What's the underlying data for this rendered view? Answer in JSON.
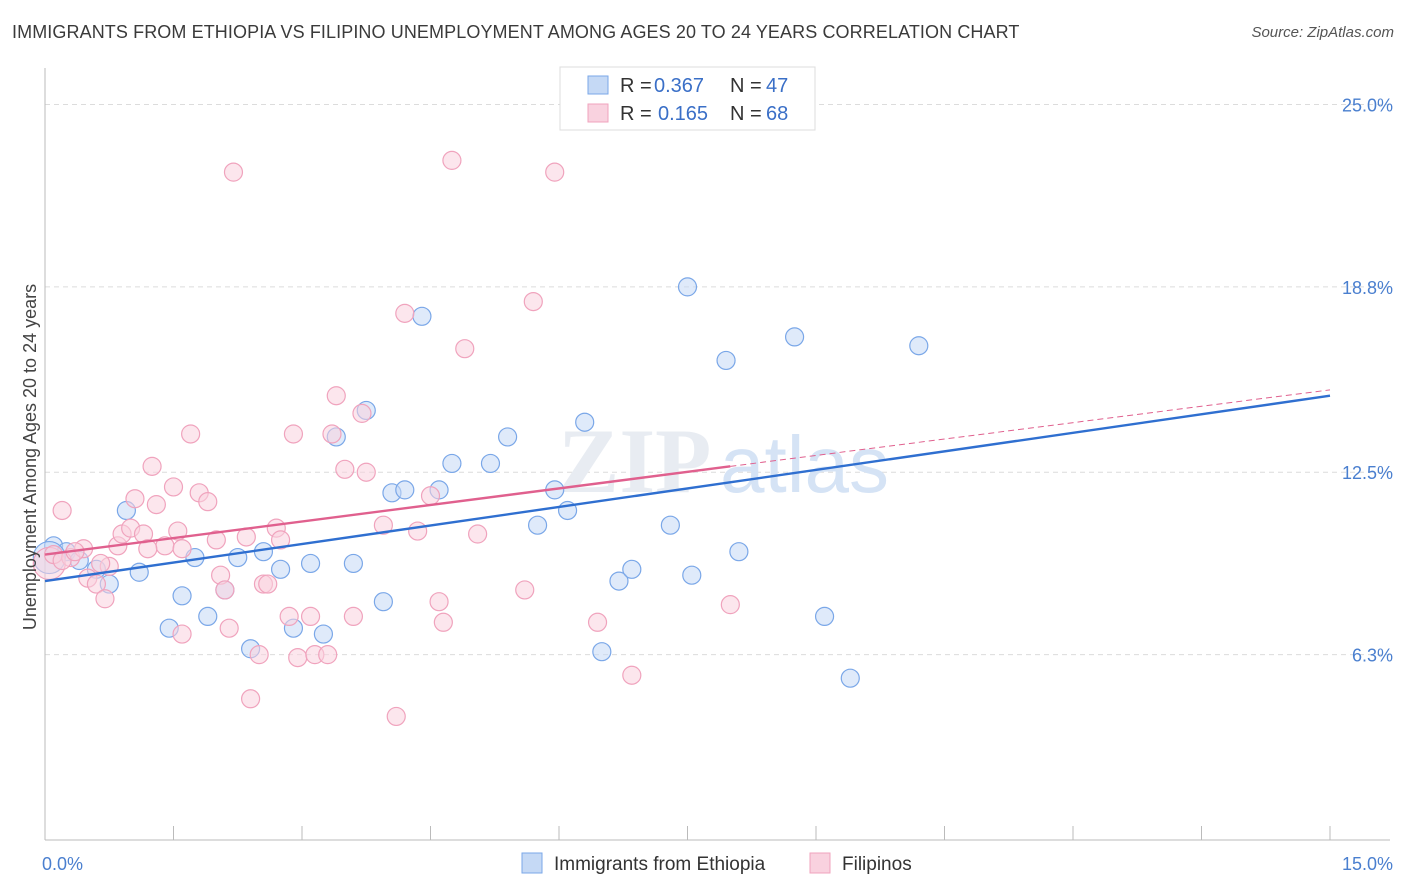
{
  "title": "IMMIGRANTS FROM ETHIOPIA VS FILIPINO UNEMPLOYMENT AMONG AGES 20 TO 24 YEARS CORRELATION CHART",
  "source": "Source: ZipAtlas.com",
  "watermark": {
    "zip": "ZIP",
    "atlas": "atlas"
  },
  "chart_data": {
    "type": "scatter",
    "title": "IMMIGRANTS FROM ETHIOPIA VS FILIPINO UNEMPLOYMENT AMONG AGES 20 TO 24 YEARS CORRELATION CHART",
    "xlabel": "",
    "ylabel": "Unemployment Among Ages 20 to 24 years",
    "xlim": [
      0,
      15
    ],
    "ylim": [
      0,
      25.9
    ],
    "x_tick_labels": [
      {
        "value": 0,
        "label": "0.0%"
      },
      {
        "value": 15,
        "label": "15.0%"
      }
    ],
    "y_tick_labels": [
      {
        "value": 6.3,
        "label": "6.3%"
      },
      {
        "value": 12.5,
        "label": "12.5%"
      },
      {
        "value": 18.8,
        "label": "18.8%"
      },
      {
        "value": 25.0,
        "label": "25.0%"
      }
    ],
    "grid": true,
    "legend_position": "top-center",
    "series": [
      {
        "name": "Immigrants from Ethiopia",
        "color": "#7aa7e8",
        "fill": "#c5d9f5",
        "R": "0.367",
        "N": "47",
        "trend": {
          "x": [
            0,
            15
          ],
          "y": [
            8.8,
            15.1
          ],
          "color": "#2f6fd0"
        },
        "points": [
          [
            0.1,
            10.0
          ],
          [
            0.25,
            9.8
          ],
          [
            0.4,
            9.5
          ],
          [
            0.6,
            9.2
          ],
          [
            0.75,
            8.7
          ],
          [
            0.95,
            11.2
          ],
          [
            1.1,
            9.1
          ],
          [
            1.45,
            7.2
          ],
          [
            1.6,
            8.3
          ],
          [
            1.75,
            9.6
          ],
          [
            1.9,
            7.6
          ],
          [
            2.1,
            8.5
          ],
          [
            2.25,
            9.6
          ],
          [
            2.4,
            6.5
          ],
          [
            2.55,
            9.8
          ],
          [
            2.75,
            9.2
          ],
          [
            2.9,
            7.2
          ],
          [
            3.1,
            9.4
          ],
          [
            3.25,
            7.0
          ],
          [
            3.4,
            13.7
          ],
          [
            3.6,
            9.4
          ],
          [
            3.75,
            14.6
          ],
          [
            3.95,
            8.1
          ],
          [
            4.05,
            11.8
          ],
          [
            4.2,
            11.9
          ],
          [
            4.4,
            17.8
          ],
          [
            4.6,
            11.9
          ],
          [
            4.75,
            12.8
          ],
          [
            5.2,
            12.8
          ],
          [
            5.4,
            13.7
          ],
          [
            5.75,
            10.7
          ],
          [
            5.95,
            11.9
          ],
          [
            6.1,
            11.2
          ],
          [
            6.3,
            14.2
          ],
          [
            6.5,
            6.4
          ],
          [
            6.7,
            8.8
          ],
          [
            6.85,
            9.2
          ],
          [
            7.3,
            10.7
          ],
          [
            7.55,
            9.0
          ],
          [
            7.5,
            18.8
          ],
          [
            7.95,
            16.3
          ],
          [
            8.1,
            9.8
          ],
          [
            8.75,
            17.1
          ],
          [
            9.1,
            7.6
          ],
          [
            9.4,
            5.5
          ],
          [
            10.2,
            16.8
          ],
          [
            0.05,
            9.6
          ]
        ]
      },
      {
        "name": "Filipinos",
        "color": "#f0a3bd",
        "fill": "#f9d2df",
        "R": "0.165",
        "N": "68",
        "trend": {
          "x": [
            0,
            8.0
          ],
          "y": [
            9.7,
            12.7
          ],
          "color": "#e0608e",
          "dashed_extension_to": [
            15,
            15.3
          ]
        },
        "points": [
          [
            0.05,
            9.4
          ],
          [
            0.1,
            9.7
          ],
          [
            0.2,
            11.2
          ],
          [
            0.3,
            9.6
          ],
          [
            0.45,
            9.9
          ],
          [
            0.5,
            8.9
          ],
          [
            0.6,
            8.7
          ],
          [
            0.7,
            8.2
          ],
          [
            0.75,
            9.3
          ],
          [
            0.85,
            10.0
          ],
          [
            0.9,
            10.4
          ],
          [
            1.0,
            10.6
          ],
          [
            1.05,
            11.6
          ],
          [
            1.15,
            10.4
          ],
          [
            1.25,
            12.7
          ],
          [
            1.3,
            11.4
          ],
          [
            1.4,
            10.0
          ],
          [
            1.5,
            12.0
          ],
          [
            1.6,
            9.9
          ],
          [
            1.55,
            10.5
          ],
          [
            1.6,
            7.0
          ],
          [
            1.7,
            13.8
          ],
          [
            1.8,
            11.8
          ],
          [
            1.9,
            11.5
          ],
          [
            2.0,
            10.2
          ],
          [
            2.05,
            9.0
          ],
          [
            2.1,
            8.5
          ],
          [
            2.15,
            7.2
          ],
          [
            2.2,
            22.7
          ],
          [
            2.35,
            10.3
          ],
          [
            2.4,
            4.8
          ],
          [
            2.5,
            6.3
          ],
          [
            2.55,
            8.7
          ],
          [
            2.6,
            8.7
          ],
          [
            2.7,
            10.6
          ],
          [
            2.75,
            10.2
          ],
          [
            2.85,
            7.6
          ],
          [
            2.9,
            13.8
          ],
          [
            2.95,
            6.2
          ],
          [
            3.1,
            7.6
          ],
          [
            3.15,
            6.3
          ],
          [
            3.3,
            6.3
          ],
          [
            3.35,
            13.8
          ],
          [
            3.4,
            15.1
          ],
          [
            3.5,
            12.6
          ],
          [
            3.6,
            7.6
          ],
          [
            3.7,
            14.5
          ],
          [
            3.75,
            12.5
          ],
          [
            3.95,
            10.7
          ],
          [
            4.1,
            4.2
          ],
          [
            4.2,
            17.9
          ],
          [
            4.35,
            10.5
          ],
          [
            4.5,
            11.7
          ],
          [
            4.6,
            8.1
          ],
          [
            4.65,
            7.4
          ],
          [
            4.75,
            23.1
          ],
          [
            4.9,
            16.7
          ],
          [
            5.05,
            10.4
          ],
          [
            5.6,
            8.5
          ],
          [
            5.7,
            18.3
          ],
          [
            5.95,
            22.7
          ],
          [
            6.45,
            7.4
          ],
          [
            6.85,
            5.6
          ],
          [
            8.0,
            8.0
          ],
          [
            0.2,
            9.5
          ],
          [
            0.35,
            9.8
          ],
          [
            1.2,
            9.9
          ],
          [
            0.65,
            9.4
          ]
        ]
      }
    ]
  },
  "legend": {
    "r_label": "R =",
    "n_label": "N ="
  }
}
